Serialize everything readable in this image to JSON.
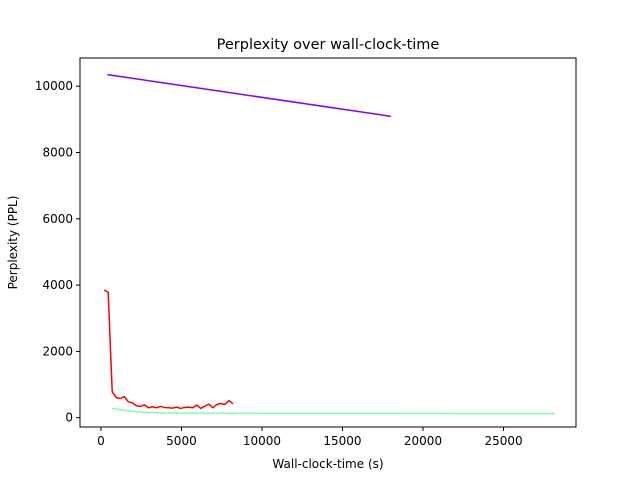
{
  "chart_data": {
    "type": "line",
    "title": "Perplexity over wall-clock-time",
    "xlabel": "Wall-clock-time (s)",
    "ylabel": "Perplexity (PPL)",
    "xlim": [
      -1300,
      29500
    ],
    "ylim": [
      -280,
      10850
    ],
    "xticks": [
      0,
      5000,
      10000,
      15000,
      20000,
      25000
    ],
    "yticks": [
      0,
      2000,
      4000,
      6000,
      8000,
      10000
    ],
    "grid": false,
    "legend": "none",
    "series": [
      {
        "color": "#8000ff",
        "x": [
          400,
          18000
        ],
        "y": [
          10350,
          9090
        ]
      },
      {
        "color": "#ff0000",
        "x": [
          200,
          450,
          700,
          950,
          1200,
          1450,
          1700,
          1950,
          2200,
          2450,
          2700,
          2950,
          3200,
          3450,
          3700,
          3950,
          4200,
          4450,
          4700,
          4950,
          5200,
          5450,
          5700,
          5950,
          6200,
          6450,
          6700,
          6950,
          7200,
          7450,
          7700,
          7950,
          8200
        ],
        "y": [
          3850,
          3780,
          780,
          610,
          580,
          640,
          480,
          450,
          360,
          340,
          390,
          300,
          330,
          300,
          340,
          310,
          300,
          290,
          320,
          280,
          310,
          320,
          300,
          380,
          280,
          350,
          410,
          300,
          400,
          430,
          400,
          520,
          420
        ]
      },
      {
        "color": "#80ffb4",
        "x": [
          700,
          1500,
          2500,
          3500,
          5000,
          7000,
          10000,
          14000,
          18000,
          22000,
          25000,
          28200
        ],
        "y": [
          280,
          220,
          170,
          150,
          140,
          135,
          130,
          130,
          130,
          128,
          128,
          128
        ]
      }
    ]
  }
}
